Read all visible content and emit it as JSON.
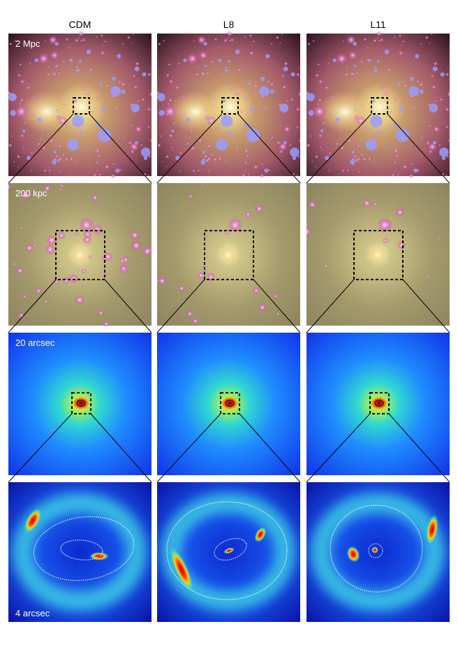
{
  "columns": [
    "CDM",
    "L8",
    "L11"
  ],
  "rows": [
    {
      "label": "2 Mpc"
    },
    {
      "label": "200 kpc"
    },
    {
      "label": "20 arcsec"
    },
    {
      "label": "4 arcsec"
    }
  ]
}
